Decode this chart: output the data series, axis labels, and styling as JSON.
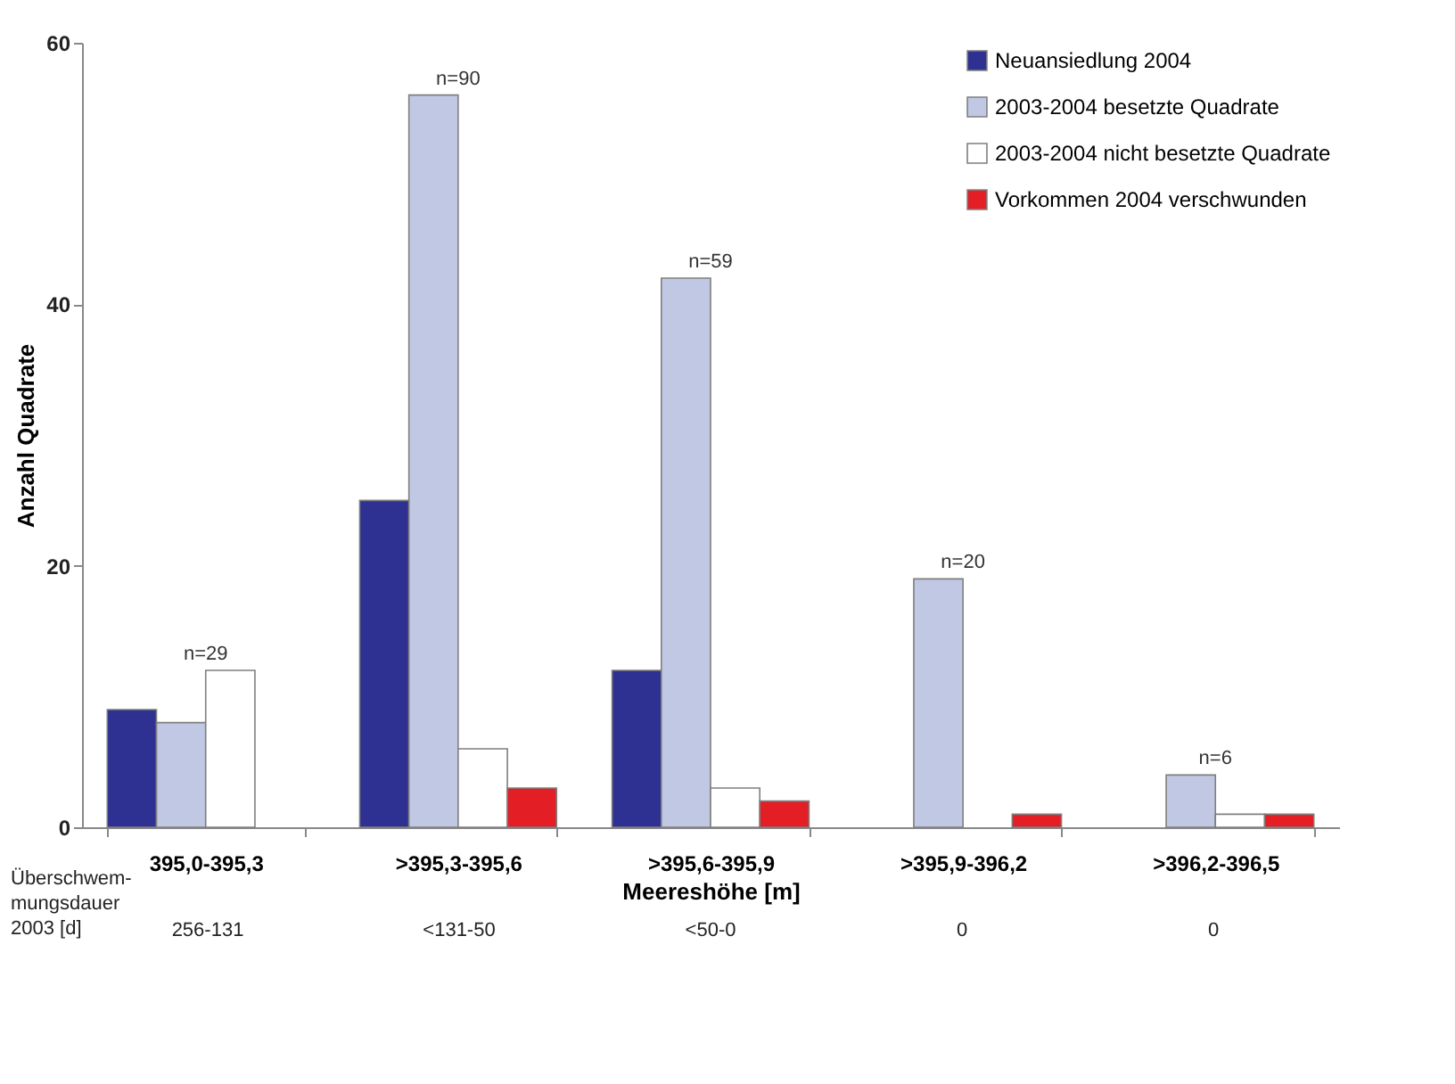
{
  "chart_data": {
    "type": "bar",
    "xlabel": "Meereshöhe [m]",
    "ylabel": "Anzahl Quadrate",
    "categories": [
      "395,0-395,3",
      ">395,3-395,6",
      ">395,6-395,9",
      ">395,9-396,2",
      ">396,2-396,5"
    ],
    "series": [
      {
        "name": "Neuansiedlung 2004",
        "color": "#2e3192",
        "values": [
          9,
          25,
          12,
          0,
          0
        ]
      },
      {
        "name": "2003-2004 besetzte Quadrate",
        "color": "#c0c8e4",
        "values": [
          8,
          56,
          42,
          19,
          4
        ]
      },
      {
        "name": "2003-2004 nicht besetzte Quadrate",
        "color": "#ffffff",
        "values": [
          12,
          6,
          3,
          0,
          1
        ]
      },
      {
        "name": "Vorkommen 2004 verschwunden",
        "color": "#e31e24",
        "values": [
          0,
          3,
          2,
          1,
          1
        ]
      }
    ],
    "ylim": [
      0,
      60
    ],
    "yticks": [
      0,
      20,
      40,
      60
    ],
    "grid": false,
    "legend": "top right",
    "annotations": [
      {
        "text": "n=29",
        "x": "395,0-395,3",
        "y": 12
      },
      {
        "text": "n=90",
        "x": ">395,3-395,6",
        "y": 56
      },
      {
        "text": "n=59",
        "x": ">395,6-395,9",
        "y": 42
      },
      {
        "text": "n=20",
        "x": ">395,9-396,2",
        "y": 19
      },
      {
        "text": "n=6",
        "x": ">396,2-396,5",
        "y": 4
      },
      "Überschwem-mungsdauer 2003 [d]",
      "256-131",
      "<131-50",
      "<50-0",
      "0",
      "0"
    ]
  }
}
